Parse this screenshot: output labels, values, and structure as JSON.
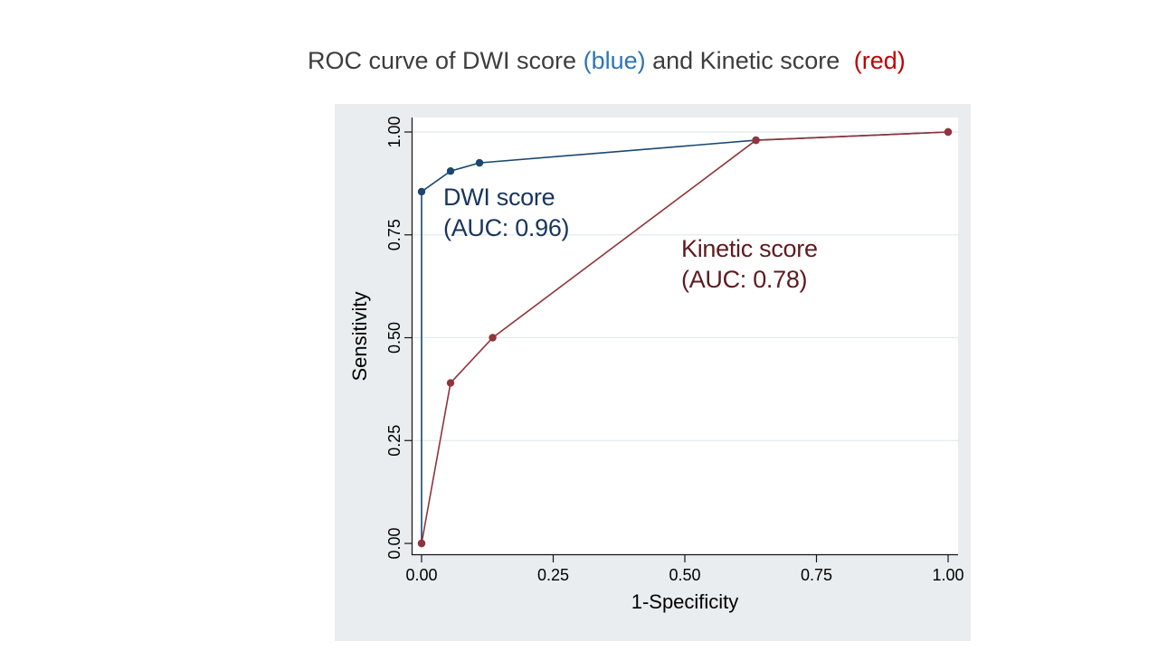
{
  "title": {
    "prefix": "ROC curve of DWI score",
    "blue": "(blue)",
    "middle": "and Kinetic score",
    "red": "(red)"
  },
  "colors": {
    "title_text": "#3d3d3d",
    "title_blue": "#2e75b6",
    "title_red": "#c00000",
    "panel_bg": "#e9edf0",
    "dwi_series": "#1a476f",
    "kinetic_series": "#90353b",
    "dwi_label": "#17365d",
    "kinetic_label": "#5f1b20"
  },
  "chart_data": {
    "type": "line",
    "title": "ROC curve of DWI score (blue) and Kinetic score (red)",
    "xlabel": "1-Specificity",
    "ylabel": "Sensitivity",
    "xlim": [
      0,
      1
    ],
    "ylim": [
      0,
      1
    ],
    "xticks": [
      "0.00",
      "0.25",
      "0.50",
      "0.75",
      "1.00"
    ],
    "yticks": [
      "0.00",
      "0.25",
      "0.50",
      "0.75",
      "1.00"
    ],
    "grid": "horizontal",
    "legend": "in-plot annotations",
    "series": [
      {
        "name": "DWI score",
        "auc": "0.96",
        "color": "#1a476f",
        "points": [
          [
            0,
            0
          ],
          [
            0,
            0.855
          ],
          [
            0.055,
            0.905
          ],
          [
            0.11,
            0.925
          ],
          [
            0.635,
            0.98
          ],
          [
            1,
            1
          ]
        ]
      },
      {
        "name": "Kinetic score",
        "auc": "0.78",
        "color": "#90353b",
        "points": [
          [
            0,
            0
          ],
          [
            0.055,
            0.39
          ],
          [
            0.135,
            0.5
          ],
          [
            0.635,
            0.98
          ],
          [
            1,
            1
          ]
        ]
      }
    ],
    "annotations": [
      {
        "line1": "DWI score",
        "line2": "(AUC: 0.96)"
      },
      {
        "line1": "Kinetic score",
        "line2": "(AUC: 0.78)"
      }
    ]
  }
}
